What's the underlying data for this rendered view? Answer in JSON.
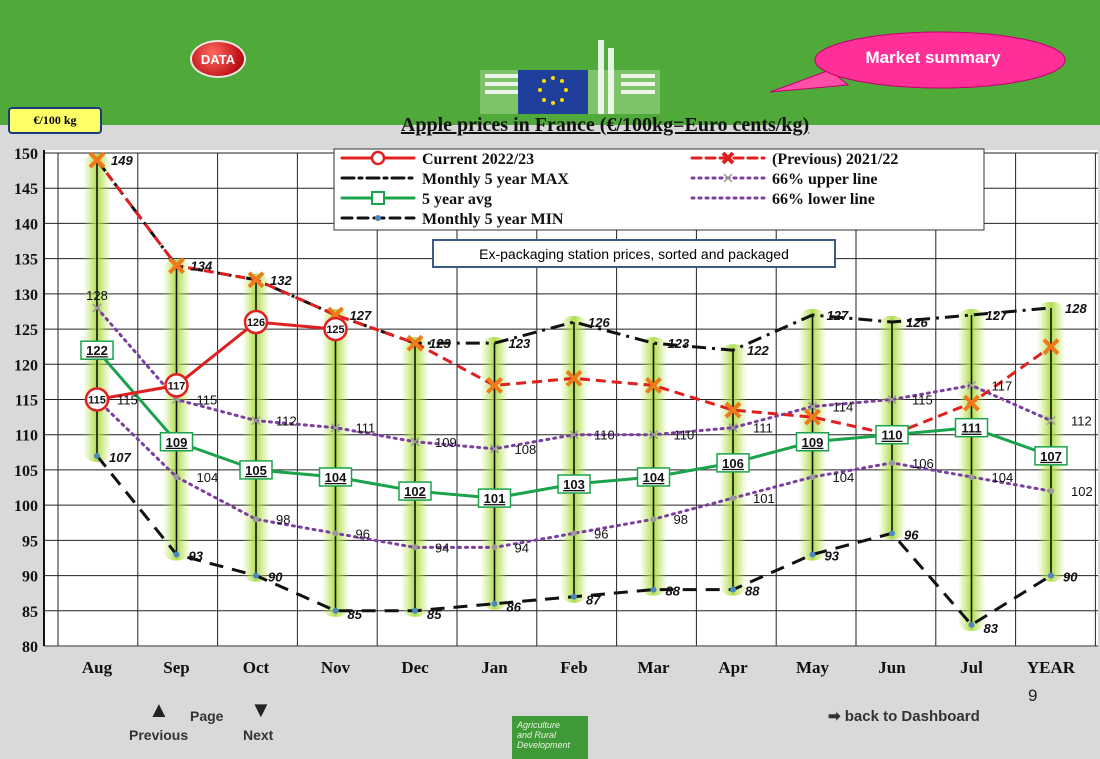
{
  "header": {
    "data_button": "DATA",
    "market_summary": "Market summary",
    "unit_badge": "€/100 kg"
  },
  "nav": {
    "page_label": "Page",
    "previous_label": "Previous",
    "next_label": "Next",
    "dashboard_label": "back to Dashboard",
    "page_number": "9",
    "agri_text": [
      "Agriculture",
      "and Rural",
      "Development"
    ]
  },
  "colors": {
    "current": "#e02020",
    "previous": "#e02020",
    "avg": "#1aa34a",
    "max": "#111111",
    "min": "#111111",
    "band": "#7b3fa0",
    "green_bg": "#4faa3a"
  },
  "chart_data": {
    "type": "line",
    "title": "Apple prices in France (€/100kg=Euro cents/kg)",
    "subtitle": "Ex-packaging station prices, sorted and packaged",
    "categories": [
      "Aug",
      "Sep",
      "Oct",
      "Nov",
      "Dec",
      "Jan",
      "Feb",
      "Mar",
      "Apr",
      "May",
      "Jun",
      "Jul",
      "YEAR"
    ],
    "ylim": [
      80,
      150
    ],
    "yticks": [
      80,
      85,
      90,
      95,
      100,
      105,
      110,
      115,
      120,
      125,
      130,
      135,
      140,
      145,
      150
    ],
    "grid": true,
    "legend_position": "top",
    "series": [
      {
        "name": "Current 2022/23",
        "values": [
          115,
          117,
          126,
          125,
          null,
          null,
          null,
          null,
          null,
          null,
          null,
          null,
          null
        ]
      },
      {
        "name": "(Previous) 2021/22",
        "values": [
          149,
          134,
          132,
          127,
          123,
          117,
          118,
          117,
          113.5,
          112.5,
          110,
          114.5,
          122.5
        ]
      },
      {
        "name": "Monthly 5 year MAX",
        "values": [
          149,
          134,
          132,
          127,
          123,
          123,
          126,
          123,
          122,
          127,
          126,
          127,
          128
        ]
      },
      {
        "name": "66% upper line",
        "values": [
          128,
          115,
          112,
          111,
          109,
          108,
          110,
          110,
          111,
          114,
          115,
          117,
          112
        ]
      },
      {
        "name": "5 year avg",
        "values": [
          122,
          109,
          105,
          104,
          102,
          101,
          103,
          104,
          106,
          109,
          110,
          111,
          107
        ]
      },
      {
        "name": "66% lower line",
        "values": [
          115,
          104,
          98,
          96,
          94,
          94,
          96,
          98,
          101,
          104,
          106,
          104,
          102
        ]
      },
      {
        "name": "Monthly 5 year MIN",
        "values": [
          107,
          93,
          90,
          85,
          85,
          86,
          87,
          88,
          88,
          93,
          96,
          83,
          90
        ]
      }
    ],
    "labels": {
      "previous": [
        "149",
        "134",
        "132",
        "127"
      ],
      "current": [
        "115",
        "117",
        "126",
        "125"
      ],
      "max": [
        "",
        "",
        "",
        "",
        "123",
        "123",
        "126",
        "123",
        "122",
        "127",
        "126",
        "127",
        "128"
      ],
      "upper": [
        "128",
        "115",
        "112",
        "111",
        "109",
        "108",
        "110",
        "110",
        "111",
        "114",
        "115",
        "117",
        "112"
      ],
      "avg": [
        "122",
        "109",
        "105",
        "104",
        "102",
        "101",
        "103",
        "104",
        "106",
        "109",
        "110",
        "111",
        "107"
      ],
      "lower": [
        "115",
        "104",
        "98",
        "96",
        "94",
        "94",
        "96",
        "98",
        "101",
        "104",
        "106",
        "104",
        "102"
      ],
      "min": [
        "107",
        "93",
        "90",
        "85",
        "85",
        "86",
        "87",
        "88",
        "88",
        "93",
        "96",
        "83",
        "90"
      ]
    }
  }
}
